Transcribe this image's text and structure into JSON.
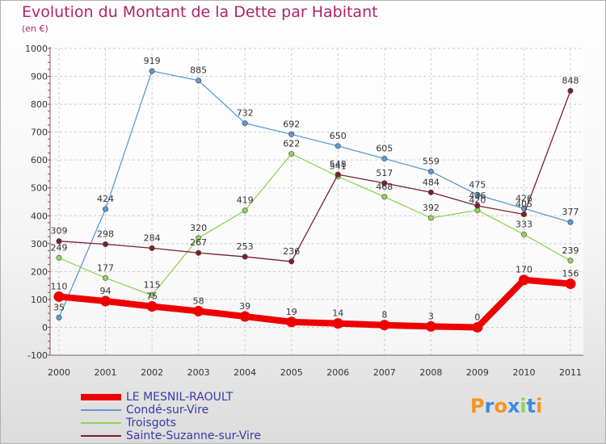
{
  "chart_data": {
    "type": "line",
    "title": "Evolution du Montant de la Dette par Habitant",
    "subtitle": "(en €)",
    "x": [
      "2000",
      "2001",
      "2002",
      "2003",
      "2004",
      "2005",
      "2006",
      "2007",
      "2008",
      "2009",
      "2010",
      "2011"
    ],
    "ylim": [
      -100,
      1000
    ],
    "yticks": [
      "-100",
      "0",
      "100",
      "200",
      "300",
      "400",
      "500",
      "600",
      "700",
      "800",
      "900",
      "1000"
    ],
    "grid": true,
    "series": [
      {
        "name": "LE MESNIL-RAOULT",
        "color": "#ee0000",
        "values": [
          110,
          94,
          75,
          58,
          39,
          19,
          14,
          8,
          3,
          0,
          170,
          156
        ],
        "labels": [
          "110",
          "94",
          "75",
          "58",
          "39",
          "19",
          "14",
          "8",
          "3",
          "0",
          "170",
          "156"
        ]
      },
      {
        "name": "Condé-sur-Vire",
        "color": "#5b9bd5",
        "values": [
          35,
          424,
          919,
          885,
          732,
          692,
          650,
          605,
          559,
          475,
          426,
          377
        ],
        "labels": [
          "35",
          "424",
          "919",
          "885",
          "732",
          "692",
          "650",
          "605",
          "559",
          "475",
          "426",
          "377"
        ]
      },
      {
        "name": "Troisgots",
        "color": "#8ed65a",
        "values": [
          249,
          177,
          115,
          320,
          419,
          622,
          541,
          468,
          392,
          420,
          333,
          239
        ],
        "labels": [
          "249",
          "177",
          "115",
          "320",
          "419",
          "622",
          "541",
          "468",
          "392",
          "420",
          "333",
          "239"
        ]
      },
      {
        "name": "Sainte-Suzanne-sur-Vire",
        "color": "#7a1f2b",
        "values": [
          309,
          298,
          284,
          267,
          253,
          236,
          548,
          517,
          484,
          436,
          405,
          848
        ],
        "labels": [
          "309",
          "298",
          "284",
          "267",
          "253",
          "236",
          "548",
          "517",
          "484",
          "436",
          "405",
          "848"
        ]
      }
    ]
  },
  "legend": {
    "items": [
      "LE MESNIL-RAOULT",
      "Condé-sur-Vire",
      "Troisgots",
      "Sainte-Suzanne-sur-Vire"
    ]
  },
  "logo": {
    "text": "Proxiti",
    "colors": [
      "#f7941d",
      "#3a8ddd",
      "#f7941d",
      "#3a8ddd",
      "#8ed65a",
      "#3a8ddd",
      "#f7941d"
    ]
  }
}
